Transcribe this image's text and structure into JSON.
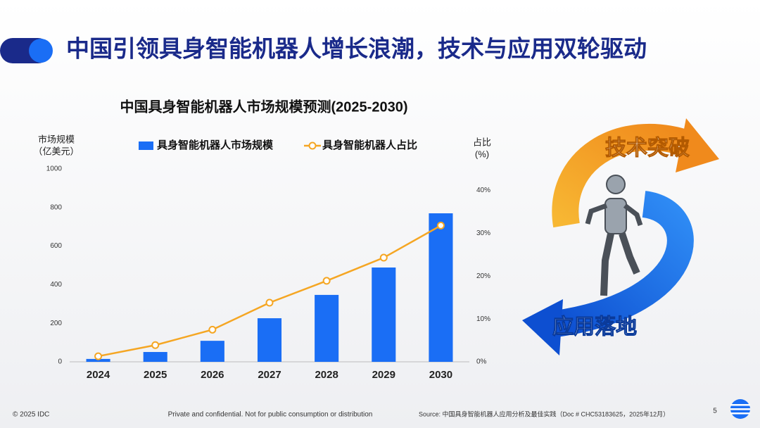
{
  "header": {
    "title": "中国引领具身智能机器人增长浪潮，技术与应用双轮驱动"
  },
  "chart_data": {
    "type": "combo",
    "title": "中国具身智能机器人市场规模预测(2025-2030)",
    "y_label": [
      "市场规模",
      "（亿美元）"
    ],
    "y2_label": [
      "占比",
      "(%)"
    ],
    "categories": [
      "2024",
      "2025",
      "2026",
      "2027",
      "2028",
      "2029",
      "2030"
    ],
    "series": [
      {
        "name": "具身智能机器人市场规模",
        "type": "bar",
        "color": "#1a6ef5",
        "values": [
          15,
          51,
          109,
          226,
          347,
          489,
          770
        ]
      },
      {
        "name": "具身智能机器人占比",
        "type": "line",
        "axis": "y2",
        "color": "#f5a623",
        "values": [
          1.3,
          3.9,
          7.5,
          13.8,
          18.9,
          24.3,
          31.8
        ]
      }
    ],
    "ylim": [
      0,
      1000
    ],
    "yticks": [
      0,
      200,
      400,
      600,
      800,
      1000
    ],
    "y2lim": [
      0,
      45
    ],
    "y2ticks": [
      {
        "value": 0,
        "label": "0%"
      },
      {
        "value": 10,
        "label": "10%"
      },
      {
        "value": 20,
        "label": "20%"
      },
      {
        "value": 30,
        "label": "30%"
      },
      {
        "value": 40,
        "label": "40%"
      }
    ],
    "legend": "top"
  },
  "illustration": {
    "labels": [
      "技术突破",
      "应用落地"
    ]
  },
  "footer": {
    "copyright": "© 2025 IDC",
    "notice": "Private and confidential. Not for public consumption or distribution",
    "source": "Source: 中国具身智能机器人应用分析及最佳实践（Doc # CHC53183625，2025年12月）",
    "page": "5"
  }
}
